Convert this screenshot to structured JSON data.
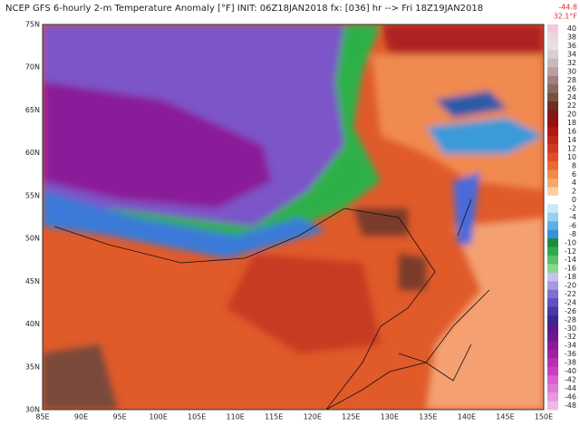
{
  "header": {
    "title": "NCEP GFS 6-hourly 2-m Temperature Anomaly [°F] INIT: 06Z18JAN2018 fx: [036] hr --> Fri 18Z19JAN2018",
    "min_label": "-44.8",
    "max_label": "32.1°F"
  },
  "map": {
    "lat_labels": [
      "75N",
      "70N",
      "65N",
      "60N",
      "55N",
      "50N",
      "45N",
      "40N",
      "35N",
      "30N"
    ],
    "lon_labels": [
      "85E",
      "90E",
      "95E",
      "100E",
      "105E",
      "110E",
      "115E",
      "120E",
      "125E",
      "130E",
      "135E",
      "140E",
      "145E",
      "150E"
    ]
  },
  "colorbar": {
    "labels": [
      40,
      38,
      36,
      34,
      32,
      30,
      28,
      26,
      24,
      22,
      20,
      18,
      16,
      14,
      12,
      10,
      8,
      6,
      4,
      2,
      0,
      -2,
      -4,
      -6,
      -8,
      -10,
      -12,
      -14,
      -16,
      -18,
      -20,
      -22,
      -24,
      -26,
      -28,
      -30,
      -32,
      -34,
      -36,
      -38,
      -40,
      -42,
      -44,
      -46,
      -48
    ]
  }
}
